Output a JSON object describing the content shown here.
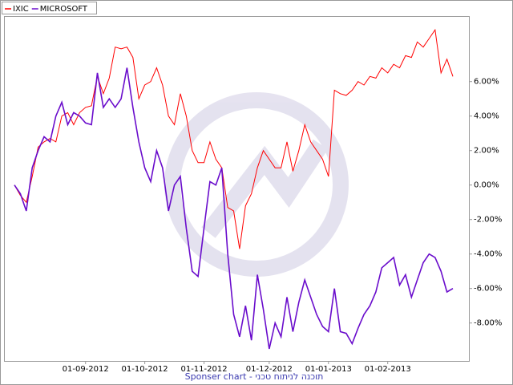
{
  "chart_data": {
    "type": "line",
    "footer": "Sponser chart - תוכנה לניתוח טכני",
    "categories": [
      null,
      null,
      null,
      null,
      null,
      null,
      null,
      null,
      null,
      null,
      null,
      null,
      "01-09-2012",
      null,
      null,
      null,
      null,
      null,
      null,
      null,
      null,
      null,
      "01-10-2012",
      null,
      null,
      null,
      null,
      null,
      null,
      null,
      null,
      null,
      "01-11-2012",
      null,
      null,
      null,
      null,
      null,
      null,
      null,
      null,
      null,
      null,
      "01-12-2012",
      null,
      null,
      null,
      null,
      null,
      null,
      null,
      null,
      null,
      "01-01-2013",
      null,
      null,
      null,
      null,
      null,
      null,
      null,
      null,
      null,
      "01-02-2013",
      null,
      null,
      null,
      null,
      null,
      null,
      null,
      null,
      null,
      null,
      null
    ],
    "series": [
      {
        "name": "IXIC",
        "color": "#ff0000",
        "values": [
          0,
          -0.6,
          -1,
          0.5,
          2.2,
          2.5,
          2.7,
          2.5,
          4,
          4.2,
          3.5,
          4.2,
          4.5,
          4.6,
          6.3,
          5.3,
          6.2,
          8,
          7.9,
          8,
          7.4,
          5,
          5.8,
          6,
          6.8,
          5.8,
          4,
          3.5,
          5.3,
          4,
          2,
          1.3,
          1.3,
          2.5,
          1.5,
          1,
          -1.3,
          -1.5,
          -3.7,
          -1.2,
          -0.5,
          1,
          2,
          1.5,
          1,
          1,
          2.5,
          0.8,
          2,
          3.5,
          2.5,
          2,
          1.5,
          0.5,
          5.5,
          5.3,
          5.2,
          5.5,
          6,
          5.8,
          6.3,
          6.2,
          6.8,
          6.5,
          7,
          6.8,
          7.5,
          7.4,
          8.3,
          8,
          8.5,
          9,
          6.5,
          7.3,
          6.3
        ]
      },
      {
        "name": "MICROSOFT",
        "color": "#6a0dcc",
        "values": [
          0,
          -0.5,
          -1.5,
          1,
          2,
          2.8,
          2.5,
          4,
          4.8,
          3.5,
          4.2,
          4,
          3.6,
          3.5,
          6.5,
          4.5,
          5,
          4.5,
          5,
          6.8,
          4.5,
          2.5,
          1,
          0.2,
          2,
          1,
          -1.5,
          0,
          0.5,
          -2.5,
          -5,
          -5.3,
          -2.5,
          0.2,
          0,
          1,
          -4,
          -7.5,
          -8.8,
          -7,
          -9,
          -5.2,
          -7.2,
          -9.5,
          -8,
          -8.8,
          -6.5,
          -8.5,
          -6.8,
          -5.5,
          -6.5,
          -7.5,
          -8.2,
          -8.5,
          -6,
          -8.5,
          -8.6,
          -9.2,
          -8.3,
          -7.5,
          -7,
          -6.2,
          -4.8,
          -4.5,
          -4.2,
          -5.8,
          -5.2,
          -6.5,
          -5.5,
          -4.5,
          -4,
          -4.2,
          -5,
          -6.2,
          -6
        ]
      }
    ],
    "ylim": [
      -10.2,
      9.8
    ],
    "yticks": [
      {
        "value": -8,
        "label": "-8.00%"
      },
      {
        "value": -6,
        "label": "-6.00%"
      },
      {
        "value": -4,
        "label": "-4.00%"
      },
      {
        "value": -2,
        "label": "-2.00%"
      },
      {
        "value": 0,
        "label": "0.00%"
      },
      {
        "value": 2,
        "label": "2.00%"
      },
      {
        "value": 4,
        "label": "4.00%"
      },
      {
        "value": 6,
        "label": "6.00%"
      }
    ],
    "legend": "top-left"
  }
}
